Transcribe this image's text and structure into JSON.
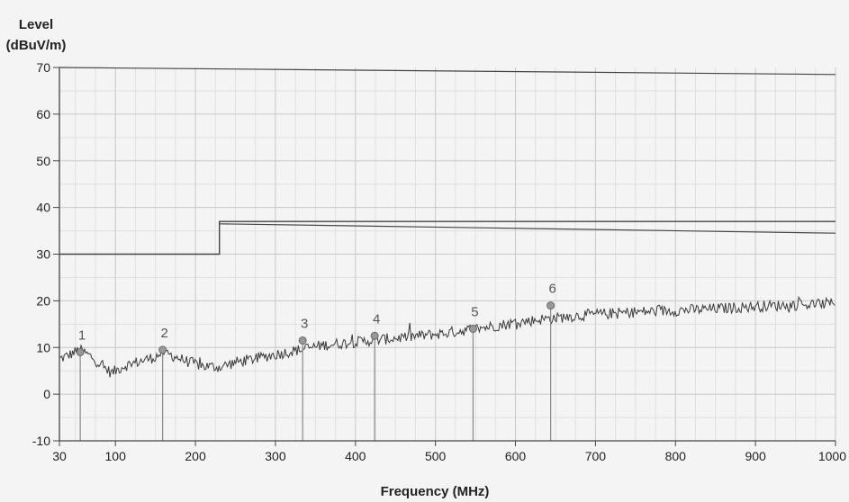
{
  "chart_data": {
    "type": "line",
    "ylabel_line1": "Level",
    "ylabel_line2": "(dBuV/m)",
    "xlabel": "Frequency (MHz)",
    "xlim": [
      30,
      1000
    ],
    "ylim": [
      -10,
      70
    ],
    "xticks": [
      30,
      100,
      200,
      300,
      400,
      500,
      600,
      700,
      800,
      900,
      1000
    ],
    "yticks": [
      -10,
      0,
      10,
      20,
      30,
      40,
      50,
      60,
      70
    ],
    "grid": true,
    "limit_line": {
      "x": [
        30,
        230,
        230,
        1000
      ],
      "y": [
        30,
        30,
        37,
        37
      ]
    },
    "limit_line_lower": {
      "x": [
        230,
        1000
      ],
      "y": [
        36.5,
        34.5
      ]
    },
    "upper_line": {
      "x": [
        30,
        1000
      ],
      "y": [
        70,
        68.5
      ]
    },
    "trace": {
      "x": [
        30,
        40,
        55,
        70,
        80,
        95,
        110,
        130,
        150,
        160,
        175,
        190,
        210,
        230,
        250,
        280,
        300,
        330,
        360,
        390,
        420,
        450,
        480,
        510,
        540,
        570,
        600,
        630,
        660,
        690,
        720,
        750,
        780,
        810,
        840,
        870,
        900,
        930,
        960,
        990,
        1000
      ],
      "y": [
        7.5,
        8.2,
        9.5,
        8.0,
        6.5,
        4.5,
        6.0,
        7.0,
        8.0,
        9.0,
        8.0,
        7.0,
        6.0,
        5.8,
        6.8,
        7.8,
        8.5,
        9.5,
        10.5,
        11.0,
        11.5,
        12.0,
        12.5,
        13.0,
        13.8,
        14.5,
        15.3,
        16.0,
        16.5,
        17.0,
        17.3,
        17.6,
        17.8,
        18.0,
        18.2,
        18.5,
        18.8,
        19.0,
        19.2,
        19.4,
        19.5
      ]
    },
    "markers": [
      {
        "label": "1",
        "x": 56,
        "y": 9.0
      },
      {
        "label": "2",
        "x": 159,
        "y": 9.5
      },
      {
        "label": "3",
        "x": 334,
        "y": 11.5
      },
      {
        "label": "4",
        "x": 424,
        "y": 12.5
      },
      {
        "label": "5",
        "x": 547,
        "y": 14.0
      },
      {
        "label": "6",
        "x": 644,
        "y": 19.0
      }
    ],
    "colors": {
      "trace": "#3a3a3a",
      "limit": "#444444",
      "marker": "#888888",
      "axis": "#444444"
    }
  }
}
